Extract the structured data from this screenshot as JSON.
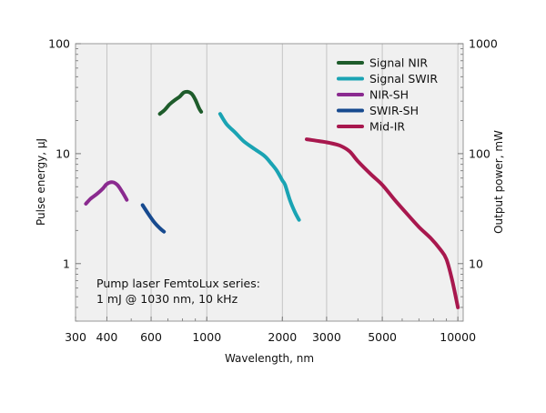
{
  "chart_data": {
    "type": "line",
    "x_label": "Wavelength, nm",
    "y_label_left": "Pulse energy, µJ",
    "y_label_right": "Output power, mW",
    "x_scale": "log",
    "y_scale": "log",
    "xlim": [
      300,
      10500
    ],
    "ylim_left": [
      0.3,
      100
    ],
    "ylim_right": [
      3,
      1000
    ],
    "grid": "vertical",
    "legend_position": "top-right",
    "x_ticks": [
      {
        "value": 300,
        "label": "300"
      },
      {
        "value": 400,
        "label": "400"
      },
      {
        "value": 600,
        "label": "600"
      },
      {
        "value": 1000,
        "label": "1000"
      },
      {
        "value": 2000,
        "label": "2000"
      },
      {
        "value": 3000,
        "label": "3000"
      },
      {
        "value": 5000,
        "label": "5000"
      },
      {
        "value": 10000,
        "label": "10000"
      }
    ],
    "y_ticks_left": [
      {
        "value": 1,
        "label": "1"
      },
      {
        "value": 10,
        "label": "10"
      },
      {
        "value": 100,
        "label": "100"
      }
    ],
    "y_ticks_right": [
      {
        "value": 10,
        "label": "10"
      },
      {
        "value": 100,
        "label": "100"
      },
      {
        "value": 1000,
        "label": "1000"
      }
    ],
    "series": [
      {
        "name": "Signal NIR",
        "color": "#1e5c2b",
        "points": [
          [
            650,
            23
          ],
          [
            680,
            25
          ],
          [
            710,
            28
          ],
          [
            750,
            31
          ],
          [
            780,
            33
          ],
          [
            810,
            36
          ],
          [
            840,
            36.5
          ],
          [
            870,
            35
          ],
          [
            900,
            31
          ],
          [
            930,
            26
          ],
          [
            950,
            24
          ]
        ]
      },
      {
        "name": "Signal SWIR",
        "color": "#1aa3b3",
        "points": [
          [
            1130,
            23
          ],
          [
            1200,
            18.5
          ],
          [
            1300,
            15.5
          ],
          [
            1400,
            13
          ],
          [
            1550,
            11
          ],
          [
            1700,
            9.5
          ],
          [
            1800,
            8.2
          ],
          [
            1900,
            7
          ],
          [
            2000,
            5.7
          ],
          [
            2050,
            5.2
          ],
          [
            2150,
            3.7
          ],
          [
            2250,
            2.9
          ],
          [
            2330,
            2.5
          ]
        ]
      },
      {
        "name": "NIR-SH",
        "color": "#8a2a8f",
        "points": [
          [
            330,
            3.5
          ],
          [
            345,
            3.9
          ],
          [
            365,
            4.3
          ],
          [
            385,
            4.8
          ],
          [
            400,
            5.3
          ],
          [
            420,
            5.5
          ],
          [
            440,
            5.2
          ],
          [
            460,
            4.5
          ],
          [
            480,
            3.8
          ]
        ]
      },
      {
        "name": "SWIR-SH",
        "color": "#174a8f",
        "points": [
          [
            555,
            3.4
          ],
          [
            590,
            2.75
          ],
          [
            620,
            2.35
          ],
          [
            650,
            2.1
          ],
          [
            675,
            1.95
          ]
        ]
      },
      {
        "name": "Mid-IR",
        "color": "#a8184e",
        "points": [
          [
            2500,
            13.5
          ],
          [
            2800,
            13
          ],
          [
            3100,
            12.5
          ],
          [
            3400,
            11.8
          ],
          [
            3700,
            10.5
          ],
          [
            4000,
            8.5
          ],
          [
            4500,
            6.5
          ],
          [
            5000,
            5.2
          ],
          [
            5600,
            3.8
          ],
          [
            6300,
            2.8
          ],
          [
            7000,
            2.15
          ],
          [
            7800,
            1.7
          ],
          [
            8500,
            1.35
          ],
          [
            9000,
            1.1
          ],
          [
            9500,
            0.7
          ],
          [
            10000,
            0.4
          ]
        ]
      }
    ],
    "annotation": [
      "Pump laser FemtoLux series:",
      "1 mJ @ 1030 nm, 10 kHz"
    ]
  }
}
